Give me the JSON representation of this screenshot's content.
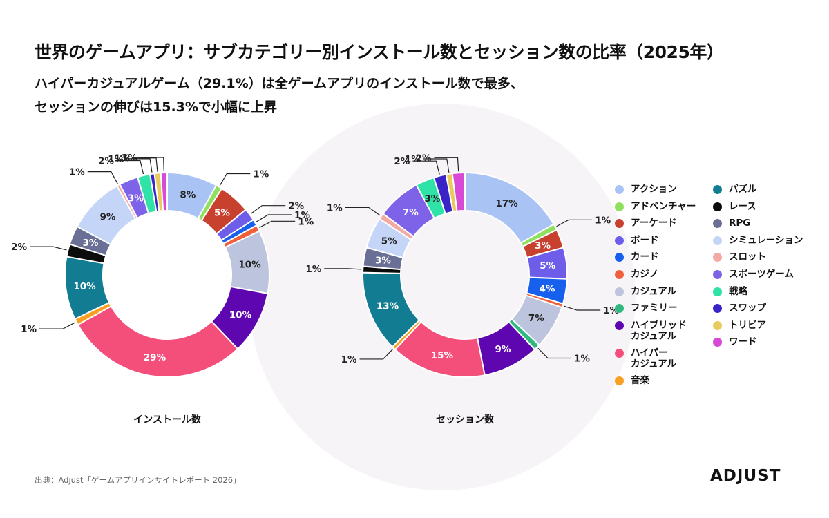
{
  "title": "世界のゲームアプリ：サブカテゴリー別インストール数とセッション数の比率（2025年）",
  "subtitle_line1": "ハイパーカジュアルゲーム（29.1%）は全ゲームアプリのインストール数で最多、",
  "subtitle_line2": "セッションの伸びは15.3%で小幅に上昇",
  "source": "出典：Adjust「ゲームアプリインサイトレポート 2026」",
  "logo": "ADJUST",
  "colors": {
    "action": "#a9c3f5",
    "adventure": "#8fe05e",
    "arcade": "#c8412e",
    "board": "#6d5de8",
    "card": "#1760ee",
    "casino": "#f2603b",
    "casual": "#bdc4dd",
    "family": "#2fb880",
    "hybrid": "#5e07b0",
    "hyper": "#f44f7b",
    "music": "#f7a023",
    "puzzle": "#127d92",
    "racing": "#0c0c0c",
    "rpg": "#6a6f95",
    "simulation": "#c4d5f8",
    "slots": "#f4aaa4",
    "sports": "#7e62e8",
    "strategy": "#2fe2a8",
    "swap": "#3b24c7",
    "trivia": "#e8cb5e",
    "word": "#d849d6"
  },
  "legend": [
    {
      "key": "action",
      "label": "アクション"
    },
    {
      "key": "adventure",
      "label": "アドベンチャー"
    },
    {
      "key": "arcade",
      "label": "アーケード"
    },
    {
      "key": "board",
      "label": "ボード"
    },
    {
      "key": "card",
      "label": "カード"
    },
    {
      "key": "casino",
      "label": "カジノ"
    },
    {
      "key": "casual",
      "label": "カジュアル"
    },
    {
      "key": "family",
      "label": "ファミリー"
    },
    {
      "key": "hybrid",
      "label": "ハイブリッド\nカジュアル"
    },
    {
      "key": "hyper",
      "label": "ハイパー\nカジュアル"
    },
    {
      "key": "music",
      "label": "音楽"
    },
    {
      "key": "puzzle",
      "label": "パズル"
    },
    {
      "key": "racing",
      "label": "レース"
    },
    {
      "key": "rpg",
      "label": "RPG"
    },
    {
      "key": "simulation",
      "label": "シミュレーション"
    },
    {
      "key": "slots",
      "label": "スロット"
    },
    {
      "key": "sports",
      "label": "スポーツゲーム"
    },
    {
      "key": "strategy",
      "label": "戦略"
    },
    {
      "key": "swap",
      "label": "スワップ"
    },
    {
      "key": "trivia",
      "label": "トリビア"
    },
    {
      "key": "word",
      "label": "ワード"
    }
  ],
  "chart_data": [
    {
      "type": "pie",
      "donut": true,
      "title": "インストール数",
      "unit": "%",
      "slices": [
        {
          "key": "action",
          "value": 8,
          "label": "8%"
        },
        {
          "key": "adventure",
          "value": 1,
          "label": "1%"
        },
        {
          "key": "arcade",
          "value": 5,
          "label": "5%"
        },
        {
          "key": "board",
          "value": 2,
          "label": "2%"
        },
        {
          "key": "card",
          "value": 1,
          "label": "1%"
        },
        {
          "key": "casino",
          "value": 1,
          "label": "1%"
        },
        {
          "key": "casual",
          "value": 10,
          "label": "10%"
        },
        {
          "key": "hybrid",
          "value": 10,
          "label": "10%"
        },
        {
          "key": "hyper",
          "value": 29.1,
          "label": "29%"
        },
        {
          "key": "music",
          "value": 1,
          "label": "1%"
        },
        {
          "key": "puzzle",
          "value": 10,
          "label": "10%"
        },
        {
          "key": "racing",
          "value": 2,
          "label": "2%"
        },
        {
          "key": "rpg",
          "value": 3,
          "label": "3%"
        },
        {
          "key": "simulation",
          "value": 9,
          "label": "9%"
        },
        {
          "key": "slots",
          "value": 0.5,
          "label": "1%"
        },
        {
          "key": "sports",
          "value": 3,
          "label": "3%"
        },
        {
          "key": "strategy",
          "value": 2,
          "label": "2%"
        },
        {
          "key": "swap",
          "value": 0.7,
          "label": "1%"
        },
        {
          "key": "trivia",
          "value": 1,
          "label": "1%"
        },
        {
          "key": "word",
          "value": 1,
          "label": "1%"
        }
      ]
    },
    {
      "type": "pie",
      "donut": true,
      "title": "セッション数",
      "unit": "%",
      "slices": [
        {
          "key": "action",
          "value": 17,
          "label": "17%"
        },
        {
          "key": "adventure",
          "value": 1,
          "label": "1%"
        },
        {
          "key": "arcade",
          "value": 3,
          "label": "3%"
        },
        {
          "key": "board",
          "value": 5,
          "label": "5%"
        },
        {
          "key": "card",
          "value": 4,
          "label": "4%"
        },
        {
          "key": "casino",
          "value": 0.6,
          "label": "1%"
        },
        {
          "key": "casual",
          "value": 7,
          "label": "7%"
        },
        {
          "key": "family",
          "value": 1,
          "label": "1%"
        },
        {
          "key": "hybrid",
          "value": 9,
          "label": "9%"
        },
        {
          "key": "hyper",
          "value": 15.3,
          "label": "15%"
        },
        {
          "key": "music",
          "value": 0.6,
          "label": "1%"
        },
        {
          "key": "puzzle",
          "value": 13,
          "label": "13%"
        },
        {
          "key": "racing",
          "value": 1,
          "label": "1%"
        },
        {
          "key": "rpg",
          "value": 3,
          "label": "3%"
        },
        {
          "key": "simulation",
          "value": 5,
          "label": "5%"
        },
        {
          "key": "slots",
          "value": 1,
          "label": "1%"
        },
        {
          "key": "sports",
          "value": 7,
          "label": "7%"
        },
        {
          "key": "strategy",
          "value": 3,
          "label": "3%"
        },
        {
          "key": "swap",
          "value": 2,
          "label": "2%"
        },
        {
          "key": "trivia",
          "value": 1,
          "label": "1%"
        },
        {
          "key": "word",
          "value": 2,
          "label": "2%"
        }
      ]
    }
  ]
}
